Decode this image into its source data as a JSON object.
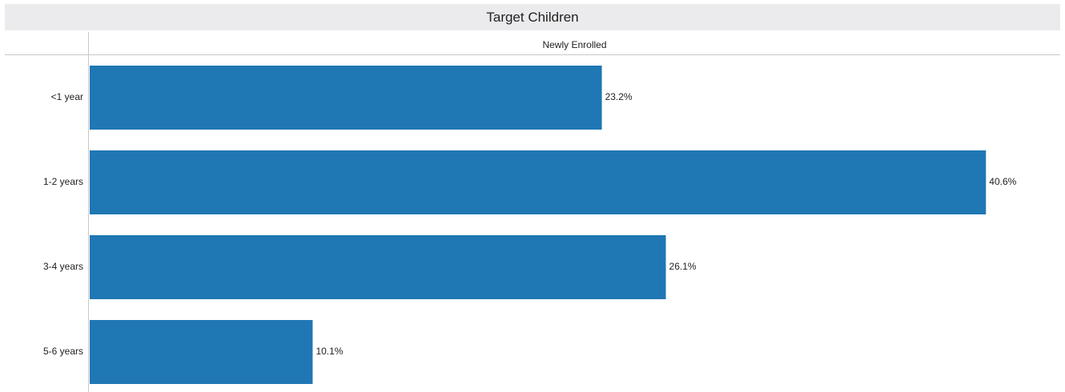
{
  "chart_data": {
    "type": "bar",
    "orientation": "horizontal",
    "title": "Target Children",
    "column_header": "Newly Enrolled",
    "categories": [
      "<1 year",
      "1-2 years",
      "3-4 years",
      "5-6 years"
    ],
    "values": [
      23.2,
      40.6,
      26.1,
      10.1
    ],
    "value_labels": [
      "23.2%",
      "40.6%",
      "26.1%",
      "10.1%"
    ],
    "unit": "%",
    "xlim": [
      0,
      44
    ],
    "grid": false,
    "bar_color": "#1f77b4"
  }
}
